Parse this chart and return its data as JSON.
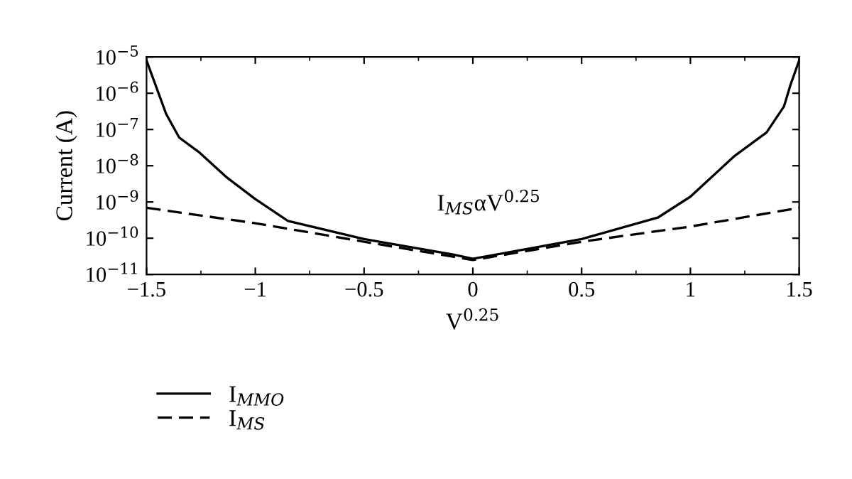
{
  "chart_data": {
    "type": "line",
    "xlabel": "V$^{0.25}$",
    "ylabel": "Current (A)",
    "log": "y",
    "grid": false,
    "legend": "bottom left",
    "xlim": [
      -1.5,
      1.5
    ],
    "xticks": [
      {
        "value": -1.5,
        "label": "−1.5"
      },
      {
        "value": -1,
        "label": "−1"
      },
      {
        "value": -0.5,
        "label": "−0.5"
      },
      0,
      0.5,
      1,
      1.5
    ],
    "ylim": [
      1e-11,
      1e-05
    ],
    "yticks": [
      {
        "value": 1e-11,
        "label": "10$^{−11}$"
      },
      {
        "value": 1e-10,
        "label": "10$^{−10}$"
      },
      {
        "value": 1e-09,
        "label": "10$^{−9}$"
      },
      {
        "value": 1e-08,
        "label": "10$^{−8}$"
      },
      {
        "value": 1e-07,
        "label": "10$^{−7}$"
      },
      {
        "value": 1e-06,
        "label": "10$^{−6}$"
      },
      {
        "value": 1e-05,
        "label": "10$^{−5}$"
      }
    ],
    "series": [
      {
        "name": "I$_{MMO}$",
        "color": "#000000",
        "line_style": "solid",
        "x": [
          -1.5,
          -1.474,
          -1.41,
          -1.35,
          -1.26,
          -1.13,
          -1.0,
          -0.85,
          -0.5,
          -0.087,
          0.0,
          0.5,
          0.85,
          1.0,
          1.2,
          1.35,
          1.43,
          1.46,
          1.5
        ],
        "values": [
          8e-06,
          3e-06,
          2.7e-07,
          6e-08,
          2.4e-08,
          4.7e-09,
          1.2e-09,
          3e-10,
          9.5e-11,
          3.5e-11,
          2.7e-11,
          9.5e-11,
          3.7e-10,
          1.4e-09,
          1.8e-08,
          8.3e-08,
          4.3e-07,
          1.7e-06,
          8e-06
        ]
      },
      {
        "name": "I$_{MS}$",
        "color": "#000000",
        "line_style": "dashed",
        "x": [
          -1.5,
          -1.0,
          -0.5,
          0.0,
          0.5,
          1.0,
          1.5
        ],
        "values": [
          6.9e-10,
          2.6e-10,
          8e-11,
          2.5e-11,
          8e-11,
          2.1e-10,
          6.9e-10
        ]
      }
    ],
    "annotations": [
      "I$_{MS}$αV$^{0.25}$"
    ]
  }
}
